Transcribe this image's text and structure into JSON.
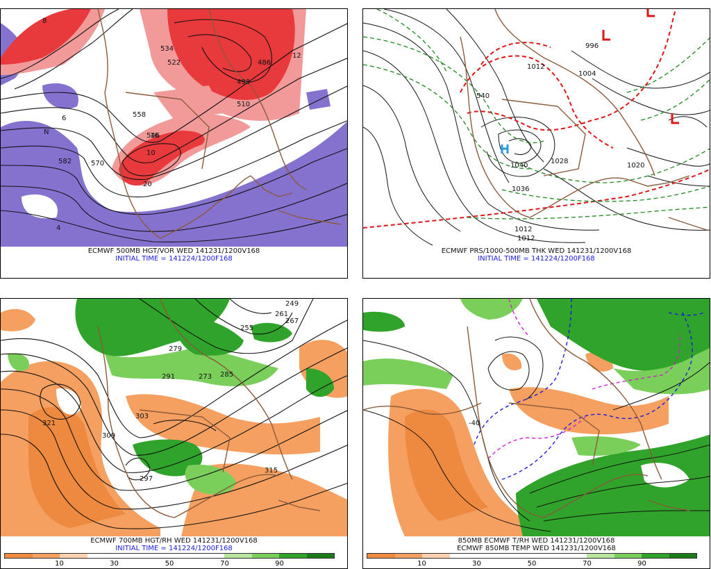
{
  "colors": {
    "vort_red": "#e8393c",
    "vort_pink": "#f29a9a",
    "vort_purple": "#8572cf",
    "land": "#8a5a3a",
    "rh_green": "#2fa32a",
    "rh_lightgreen": "#79cf5a",
    "dry_orange": "#f5a060",
    "dry_orange2": "#ee8a40",
    "thk_red": "#e01515",
    "thk_green": "#1d8a1d",
    "temp_blue": "#1a1adc",
    "temp_magenta": "#d020d0"
  },
  "panels": [
    {
      "id": "500mb",
      "caption_line1": "ECMWF 500MB HGT/VOR WED 141231/1200V168",
      "caption_line2": "INITIAL TIME = 141224/1200F168",
      "labels": [
        "486",
        "498",
        "510",
        "522",
        "534",
        "546",
        "558",
        "570",
        "582",
        "6",
        "8",
        "10",
        "12",
        "16",
        "20",
        "4",
        "N"
      ]
    },
    {
      "id": "sfc",
      "caption_line1": "ECMWF PRS/1000-500MB THK WED 141231/1200V168",
      "caption_line2": "INITIAL TIME = 141224/1200F168",
      "labels": [
        "1012",
        "1004",
        "996",
        "1040",
        "1028",
        "1020",
        "1036",
        "1012",
        "1012",
        "540",
        "L",
        "L",
        "L",
        "H"
      ]
    },
    {
      "id": "700mb",
      "caption_line1": "ECMWF 700MB HGT/RH WED 141231/1200V168",
      "caption_line2": "INITIAL TIME = 141224/1200F168",
      "labels": [
        "249",
        "255",
        "261",
        "267",
        "273",
        "279",
        "285",
        "291",
        "297",
        "303",
        "309",
        "315",
        "321"
      ],
      "colorbar_ticks": [
        "10",
        "30",
        "50",
        "70",
        "90"
      ]
    },
    {
      "id": "850mb",
      "caption_line1": "850MB ECMWF T/RH WED 141231/1200V168",
      "caption_line2": "ECMWF 850MB TEMP WED 141231/1200V168",
      "labels": [
        "-40"
      ],
      "colorbar_ticks": [
        "10",
        "30",
        "50",
        "70",
        "90"
      ]
    }
  ]
}
